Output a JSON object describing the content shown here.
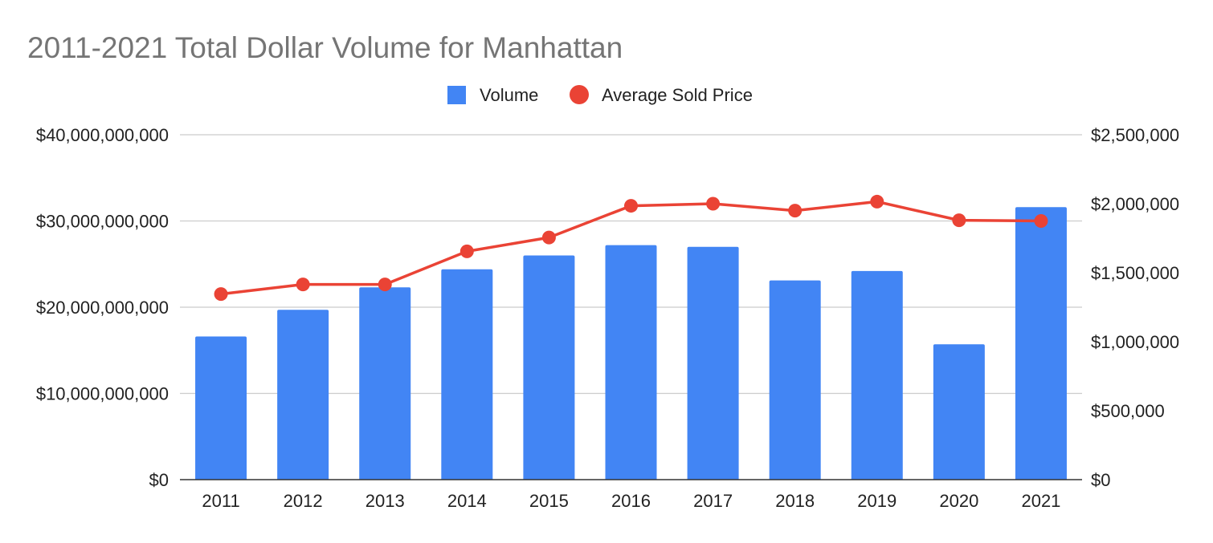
{
  "chart_data": {
    "type": "bar",
    "title": "2011-2021 Total Dollar Volume for Manhattan",
    "categories": [
      "2011",
      "2012",
      "2013",
      "2014",
      "2015",
      "2016",
      "2017",
      "2018",
      "2019",
      "2020",
      "2021"
    ],
    "series": [
      {
        "name": "Volume",
        "type": "bar",
        "axis": "left",
        "color": "#4285f4",
        "values": [
          16600000000,
          19700000000,
          22300000000,
          24400000000,
          26000000000,
          27200000000,
          27000000000,
          23100000000,
          24200000000,
          15700000000,
          31600000000
        ]
      },
      {
        "name": "Average Sold Price",
        "type": "line",
        "axis": "right",
        "color": "#ea4335",
        "values": [
          1345000,
          1415000,
          1415000,
          1655000,
          1755000,
          1985000,
          2000000,
          1950000,
          2015000,
          1880000,
          1875000
        ]
      }
    ],
    "y_left": {
      "ylim": [
        0,
        40000000000
      ],
      "ticks": [
        0,
        10000000000,
        20000000000,
        30000000000,
        40000000000
      ],
      "tick_labels": [
        "$0",
        "$10,000,000,000",
        "$20,000,000,000",
        "$30,000,000,000",
        "$40,000,000,000"
      ]
    },
    "y_right": {
      "ylim": [
        0,
        2500000
      ],
      "ticks": [
        0,
        500000,
        1000000,
        1500000,
        2000000,
        2500000
      ],
      "tick_labels": [
        "$0",
        "$500,000",
        "$1,000,000",
        "$1,500,000",
        "$2,000,000",
        "$2,500,000"
      ]
    },
    "grid": true,
    "legend": "top-center"
  }
}
